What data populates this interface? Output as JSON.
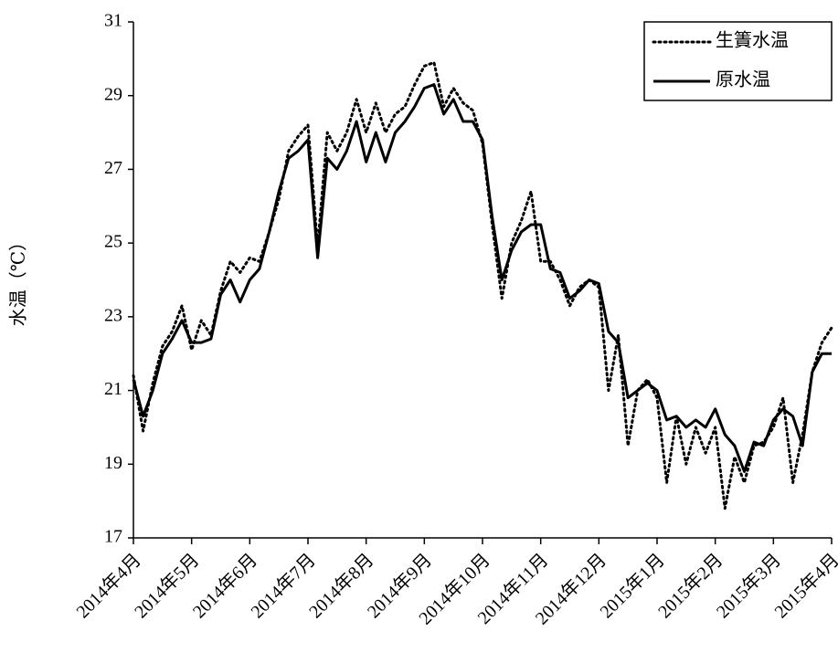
{
  "chart_data": {
    "type": "line",
    "ylabel": "水温（℃）",
    "categories": [
      "2014年4月",
      null,
      null,
      null,
      null,
      null,
      "2014年5月",
      null,
      null,
      null,
      null,
      null,
      "2014年6月",
      null,
      null,
      null,
      null,
      null,
      "2014年7月",
      null,
      null,
      null,
      null,
      null,
      "2014年8月",
      null,
      null,
      null,
      null,
      null,
      "2014年9月",
      null,
      null,
      null,
      null,
      null,
      "2014年10月",
      null,
      null,
      null,
      null,
      null,
      "2014年11月",
      null,
      null,
      null,
      null,
      null,
      "2014年12月",
      null,
      null,
      null,
      null,
      null,
      "2015年1月",
      null,
      null,
      null,
      null,
      null,
      "2015年2月",
      null,
      null,
      null,
      null,
      null,
      "2015年3月",
      null,
      null,
      null,
      null,
      null,
      "2015年4月"
    ],
    "series": [
      {
        "name": "生簀水温",
        "color": "#000000",
        "line_style": "dotted",
        "values": [
          21.4,
          19.9,
          21.2,
          22.2,
          22.6,
          23.3,
          22.1,
          22.9,
          22.5,
          23.7,
          24.5,
          24.2,
          24.6,
          24.5,
          25.3,
          26.2,
          27.5,
          27.9,
          28.2,
          24.9,
          28.0,
          27.5,
          28.0,
          28.9,
          28.0,
          28.8,
          28.0,
          28.5,
          28.7,
          29.3,
          29.8,
          29.9,
          28.7,
          29.2,
          28.8,
          28.6,
          27.7,
          25.5,
          23.5,
          25.0,
          25.6,
          26.4,
          24.5,
          24.5,
          24.0,
          23.3,
          23.8,
          24.0,
          23.8,
          21.0,
          22.5,
          19.5,
          21.0,
          21.3,
          20.8,
          18.5,
          20.3,
          19.0,
          20.0,
          19.3,
          20.0,
          17.8,
          19.2,
          18.5,
          19.5,
          19.6,
          20.0,
          20.8,
          18.5,
          19.8,
          21.5,
          22.3,
          22.7
        ]
      },
      {
        "name": "原水温",
        "color": "#000000",
        "line_style": "solid",
        "values": [
          21.3,
          20.3,
          21.0,
          22.0,
          22.4,
          22.9,
          22.3,
          22.3,
          22.4,
          23.6,
          24.0,
          23.4,
          24.0,
          24.3,
          25.3,
          26.4,
          27.3,
          27.5,
          27.8,
          24.6,
          27.3,
          27.0,
          27.5,
          28.3,
          27.2,
          28.0,
          27.2,
          28.0,
          28.3,
          28.7,
          29.2,
          29.3,
          28.5,
          28.9,
          28.3,
          28.3,
          27.8,
          25.7,
          24.0,
          24.8,
          25.3,
          25.5,
          25.5,
          24.3,
          24.2,
          23.5,
          23.7,
          24.0,
          23.9,
          22.6,
          22.3,
          20.8,
          21.0,
          21.2,
          21.0,
          20.2,
          20.3,
          20.0,
          20.2,
          20.0,
          20.5,
          19.8,
          19.5,
          18.8,
          19.6,
          19.5,
          20.2,
          20.5,
          20.3,
          19.5,
          21.5,
          22.0,
          22.0
        ]
      }
    ],
    "ylim": [
      17,
      31
    ],
    "yticks": [
      17,
      19,
      21,
      23,
      25,
      27,
      29,
      31
    ],
    "legend": "upper right",
    "grid": false
  }
}
